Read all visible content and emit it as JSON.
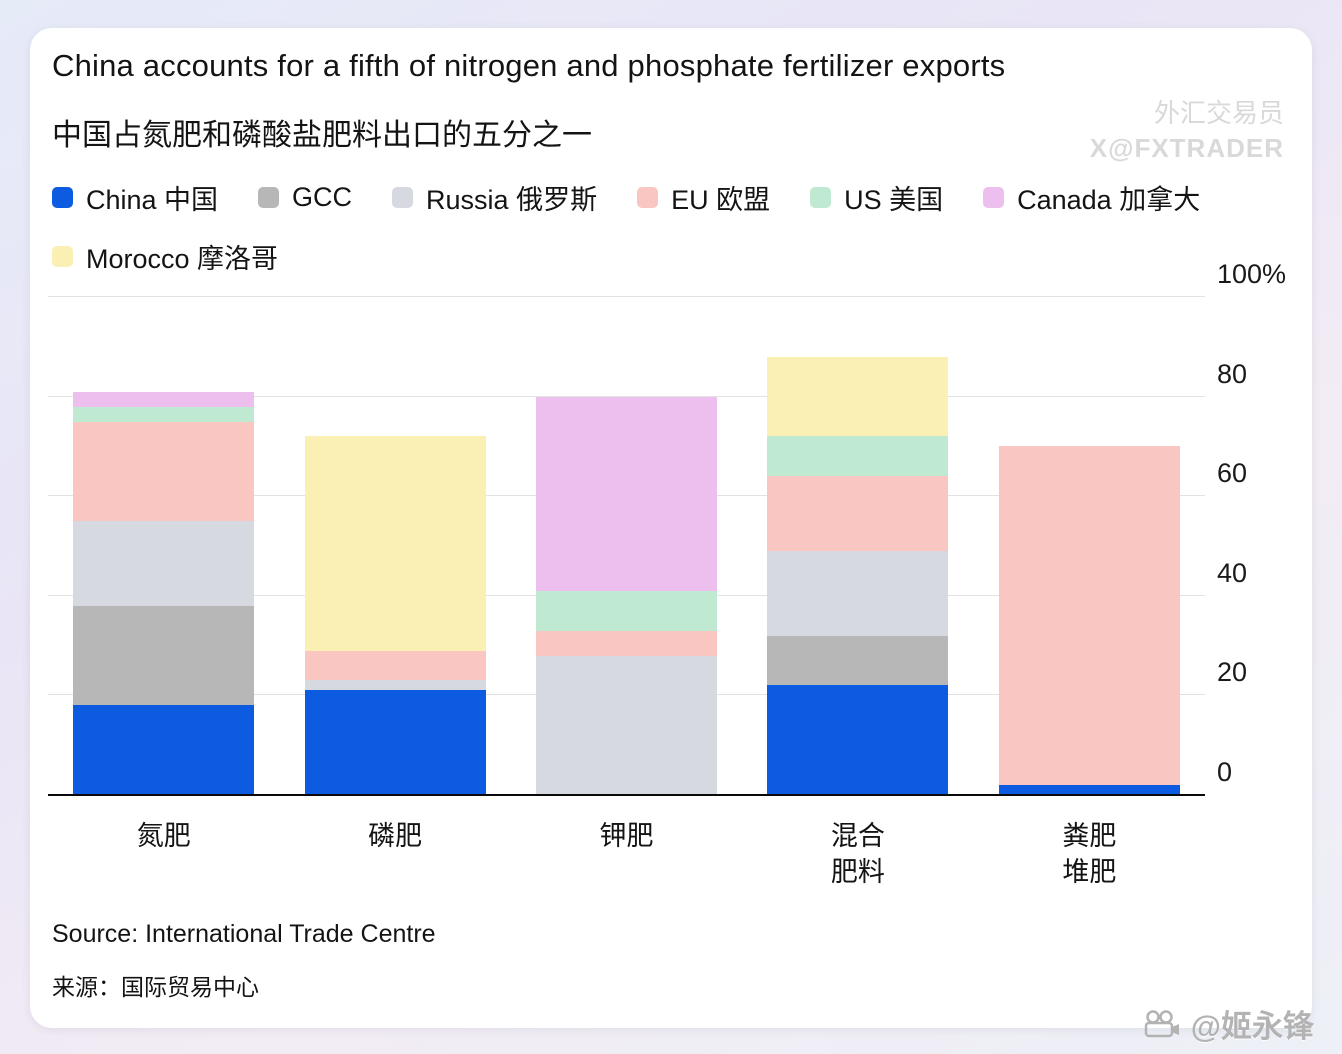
{
  "card": {
    "title_en": "China accounts for a fifth of nitrogen and phosphate fertilizer exports",
    "title_zh": "中国占氮肥和磷酸盐肥料出口的五分之一",
    "watermark_top_line1": "外汇交易员",
    "watermark_top_line2": "X@FXTRADER",
    "watermark_bottom": "@姬永锋",
    "source_en": "Source: International Trade Centre",
    "source_zh": "来源：国际贸易中心"
  },
  "chart_data": {
    "type": "bar",
    "stacked": true,
    "title": "China accounts for a fifth of nitrogen and phosphate fertilizer exports",
    "subtitle": "中国占氮肥和磷酸盐肥料出口的五分之一",
    "unit": "%",
    "ylim": [
      0,
      100
    ],
    "grid": true,
    "legend_position": "top",
    "yticks": [
      {
        "value": 0,
        "label": "0"
      },
      {
        "value": 20,
        "label": "20"
      },
      {
        "value": 40,
        "label": "40"
      },
      {
        "value": 60,
        "label": "60"
      },
      {
        "value": 80,
        "label": "80"
      },
      {
        "value": 100,
        "label": "100%"
      }
    ],
    "categories": [
      "氮肥",
      "磷肥",
      "钾肥",
      "混合肥料",
      "粪肥堆肥"
    ],
    "category_labels": [
      [
        "氮肥"
      ],
      [
        "磷肥"
      ],
      [
        "钾肥"
      ],
      [
        "混合",
        "肥料"
      ],
      [
        "粪肥",
        "堆肥"
      ]
    ],
    "series": [
      {
        "name": "China 中国",
        "color": "#0d5be1",
        "values": [
          18,
          21,
          0,
          22,
          2
        ]
      },
      {
        "name": "GCC",
        "color": "#b7b7b7",
        "values": [
          20,
          0,
          0,
          10,
          0
        ]
      },
      {
        "name": "Russia 俄罗斯",
        "color": "#d6d9e0",
        "values": [
          17,
          2,
          28,
          17,
          0
        ]
      },
      {
        "name": "EU 欧盟",
        "color": "#f9c6c2",
        "values": [
          20,
          6,
          5,
          15,
          68
        ]
      },
      {
        "name": "US 美国",
        "color": "#bfe9d1",
        "values": [
          3,
          0,
          8,
          8,
          0
        ]
      },
      {
        "name": "Canada 加拿大",
        "color": "#edbfee",
        "values": [
          3,
          0,
          39,
          0,
          0
        ]
      },
      {
        "name": "Morocco 摩洛哥",
        "color": "#faf0b4",
        "values": [
          0,
          43,
          0,
          16,
          0
        ]
      }
    ]
  }
}
